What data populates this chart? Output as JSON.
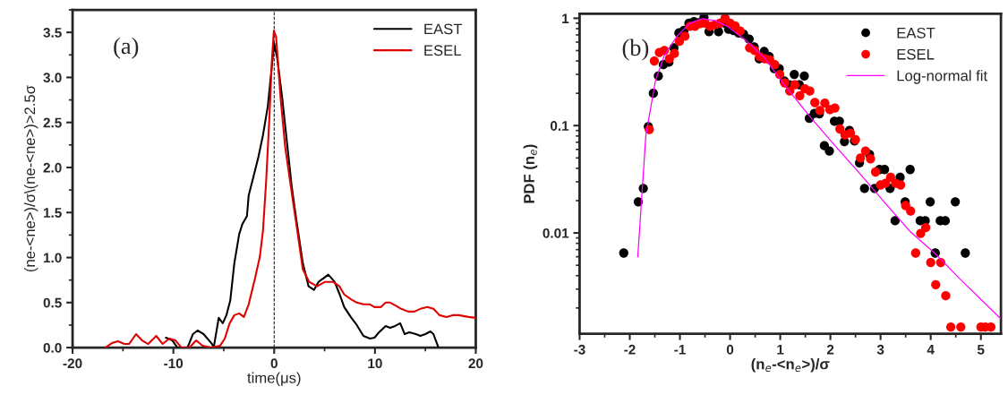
{
  "chart_data": [
    {
      "type": "line",
      "xlabel": "time(μs)",
      "ylabel": "(ne-<ne>)/σ\\(ne-<ne>)>2.5σ",
      "annotations": [
        "(a)"
      ],
      "xlim": [
        -20,
        20
      ],
      "ylim": [
        0,
        3.75
      ],
      "xticks": [
        -20,
        -10,
        0,
        10,
        20
      ],
      "yticks": [
        {
          "value": 0,
          "label": "0.0"
        },
        0.5,
        {
          "value": 1,
          "label": "1.0"
        },
        1.5,
        {
          "value": 2,
          "label": "2.0"
        },
        2.5,
        {
          "value": 3,
          "label": "3.0"
        },
        3.5
      ],
      "legend": "top right",
      "grid": false,
      "ref_lines": [
        {
          "axis": "x",
          "value": 0,
          "color": "#000000",
          "line_style": "dashed"
        }
      ],
      "series": [
        {
          "name": "EAST",
          "color": "#000000",
          "x": [
            -10.74,
            -10.1,
            -9.6,
            -9.2,
            -8.6,
            -8.06,
            -7.6,
            -7.0,
            -6.16,
            -6.0,
            -5.5,
            -5.1,
            -4.74,
            -4.36,
            -3.95,
            -3.47,
            -3.16,
            -2.7,
            -2.53,
            -2.05,
            -1.58,
            -1.11,
            -0.63,
            -0.22,
            0,
            0.32,
            0.79,
            1.26,
            1.74,
            2.2,
            2.84,
            3.41,
            3.95,
            4.4,
            4.9,
            5.37,
            6.0,
            6.5,
            6.95,
            7.6,
            8.2,
            8.85,
            9.5,
            9.95,
            10.4,
            11.06,
            11.5,
            12.0,
            12.5,
            12.95,
            13.4,
            14.06,
            14.5,
            15.0,
            15.5,
            15.8,
            16.3
          ],
          "values": [
            0.11,
            0.08,
            0.0,
            0.0,
            0.0,
            0.15,
            0.19,
            0.15,
            0.04,
            0.0,
            0.33,
            0.27,
            0.36,
            0.52,
            0.94,
            1.26,
            1.37,
            1.46,
            1.69,
            1.9,
            2.11,
            2.36,
            2.68,
            3.14,
            3.38,
            3.2,
            2.78,
            2.29,
            1.79,
            1.42,
            0.94,
            0.68,
            0.64,
            0.73,
            0.77,
            0.81,
            0.73,
            0.59,
            0.45,
            0.34,
            0.25,
            0.13,
            0.1,
            0.11,
            0.17,
            0.24,
            0.22,
            0.24,
            0.27,
            0.15,
            0.17,
            0.15,
            0.13,
            0.15,
            0.18,
            0.15,
            0.0
          ]
        },
        {
          "name": "ESEL",
          "color": "#e00000",
          "x": [
            -16.75,
            -16.1,
            -15.5,
            -14.85,
            -14.4,
            -13.7,
            -13.1,
            -12.5,
            -11.7,
            -11.06,
            -10.4,
            -9.8,
            -9.2,
            -8.4,
            -7.74,
            -7.1,
            -6.3,
            -5.37,
            -4.9,
            -4.42,
            -3.95,
            -3.47,
            -3.0,
            -2.53,
            -1.9,
            -1.42,
            -1.11,
            -0.79,
            -0.47,
            -0.22,
            -0.03,
            0.19,
            0.63,
            1.1,
            1.74,
            2.2,
            2.84,
            3.47,
            4.26,
            5.05,
            5.84,
            6.47,
            6.95,
            7.58,
            8.2,
            8.85,
            9.5,
            9.95,
            10.6,
            11.06,
            11.5,
            12.0,
            12.6,
            13.3,
            13.9,
            14.5,
            15.2,
            15.8,
            16.4,
            17.1,
            17.7,
            18.3,
            19.3,
            20
          ],
          "values": [
            0,
            0.05,
            0.07,
            0.04,
            0.04,
            0.15,
            0.08,
            0.04,
            0.13,
            0.04,
            0.1,
            0.08,
            0,
            0,
            0.08,
            0.02,
            0,
            0.02,
            0.1,
            0.27,
            0.36,
            0.38,
            0.34,
            0.48,
            0.77,
            1.01,
            1.3,
            1.86,
            2.57,
            3.2,
            3.52,
            3.45,
            2.78,
            2.22,
            1.72,
            1.37,
            0.87,
            0.73,
            0.68,
            0.73,
            0.73,
            0.68,
            0.59,
            0.54,
            0.5,
            0.48,
            0.48,
            0.45,
            0.45,
            0.5,
            0.5,
            0.47,
            0.43,
            0.4,
            0.4,
            0.43,
            0.45,
            0.43,
            0.36,
            0.34,
            0.36,
            0.36,
            0.34,
            0.33
          ]
        }
      ]
    },
    {
      "type": "scatter",
      "xlabel": "(n$_{e}$-<n$_{e}$>)/σ",
      "ylabel": "PDF (n$_{e}$)",
      "annotations": [
        "(b)"
      ],
      "log": "y",
      "xlim": [
        -3,
        5.4
      ],
      "ylim": [
        0.00115,
        1.1
      ],
      "xticks": [
        -3,
        -2,
        -1,
        0,
        1,
        2,
        3,
        4,
        5
      ],
      "yticks": [
        0.01,
        0.1,
        1
      ],
      "legend": "top right",
      "grid": false,
      "series": [
        {
          "name": "EAST",
          "color": "#000000",
          "marker": "circle",
          "x": [
            -2.12,
            -1.83,
            -1.73,
            -1.63,
            -1.53,
            -1.43,
            -1.33,
            -1.22,
            -1.12,
            -1.02,
            -0.92,
            -0.82,
            -0.72,
            -0.62,
            -0.52,
            -0.42,
            -0.23,
            -0.11,
            -0.03,
            0.07,
            0.17,
            0.27,
            0.38,
            0.48,
            0.58,
            0.68,
            0.78,
            0.88,
            0.98,
            1.08,
            1.18,
            1.28,
            1.38,
            1.48,
            1.58,
            1.68,
            1.78,
            1.88,
            1.98,
            2.08,
            2.18,
            2.28,
            2.38,
            2.48,
            2.58,
            2.68,
            2.78,
            2.88,
            2.98,
            3.08,
            3.19,
            3.29,
            3.39,
            3.49,
            3.59,
            3.79,
            3.89,
            3.99,
            4.09,
            4.19,
            4.29,
            4.49,
            4.69
          ],
          "values": [
            0.0065,
            0.0195,
            0.026,
            0.098,
            0.2,
            0.29,
            0.37,
            0.39,
            0.53,
            0.73,
            0.77,
            0.9,
            0.93,
            0.91,
            1.02,
            0.75,
            0.75,
            0.9,
            0.79,
            0.77,
            0.73,
            0.71,
            0.64,
            0.54,
            0.42,
            0.49,
            0.44,
            0.34,
            0.34,
            0.26,
            0.24,
            0.3,
            0.24,
            0.29,
            0.117,
            0.13,
            0.129,
            0.065,
            0.058,
            0.11,
            0.11,
            0.071,
            0.09,
            0.072,
            0.045,
            0.026,
            0.054,
            0.026,
            0.039,
            0.039,
            0.026,
            0.013,
            0.033,
            0.0195,
            0.039,
            0.013,
            0.013,
            0.0195,
            0.0065,
            0.013,
            0.013,
            0.0195,
            0.0065
          ]
        },
        {
          "name": "ESEL",
          "color": "#ff0000",
          "marker": "circle",
          "x": [
            -1.61,
            -1.51,
            -1.41,
            -1.31,
            -1.21,
            -1.11,
            -1.01,
            -0.9,
            -0.8,
            -0.7,
            -0.6,
            -0.5,
            -0.4,
            -0.3,
            -0.2,
            -0.1,
            0.0,
            0.1,
            0.2,
            0.39,
            0.49,
            0.59,
            0.69,
            0.79,
            0.89,
            0.99,
            1.09,
            1.19,
            1.29,
            1.39,
            1.49,
            1.59,
            1.69,
            1.79,
            1.89,
            1.99,
            2.09,
            2.19,
            2.29,
            2.4,
            2.5,
            2.6,
            2.7,
            2.8,
            2.9,
            3.0,
            3.1,
            3.2,
            3.3,
            3.4,
            3.5,
            3.6,
            3.7,
            3.8,
            3.9,
            4.0,
            4.1,
            4.2,
            4.3,
            4.4,
            4.6,
            5.0,
            5.09,
            5.2
          ],
          "values": [
            0.092,
            0.4,
            0.48,
            0.5,
            0.42,
            0.47,
            0.61,
            0.68,
            0.84,
            0.84,
            0.89,
            0.9,
            0.84,
            0.87,
            0.9,
            1.0,
            0.9,
            0.85,
            0.76,
            0.53,
            0.5,
            0.44,
            0.42,
            0.41,
            0.37,
            0.3,
            0.25,
            0.21,
            0.24,
            0.19,
            0.22,
            0.21,
            0.164,
            0.138,
            0.162,
            0.141,
            0.146,
            0.093,
            0.082,
            0.085,
            0.074,
            0.05,
            0.058,
            0.049,
            0.037,
            0.028,
            0.029,
            0.033,
            0.029,
            0.028,
            0.018,
            0.016,
            0.0065,
            0.0099,
            0.0112,
            0.0053,
            0.0033,
            0.0053,
            0.0026,
            0.00133,
            0.00133,
            0.00133,
            0.00133,
            0.00133
          ]
        },
        {
          "name": "Log-normal fit",
          "color": "#ff00ff",
          "type": "line",
          "x": [
            -1.84,
            -1.68,
            -1.49,
            -1.31,
            -1.06,
            -0.8,
            -0.55,
            -0.3,
            -0.05,
            0.32,
            0.7,
            1.08,
            1.58,
            2.08,
            2.58,
            3.09,
            3.59,
            4.09,
            4.59,
            5.39
          ],
          "values": [
            0.006,
            0.08,
            0.26,
            0.45,
            0.68,
            0.9,
            0.99,
            0.95,
            0.84,
            0.62,
            0.42,
            0.24,
            0.123,
            0.066,
            0.036,
            0.019,
            0.0103,
            0.0064,
            0.0037,
            0.0016
          ]
        }
      ]
    }
  ]
}
